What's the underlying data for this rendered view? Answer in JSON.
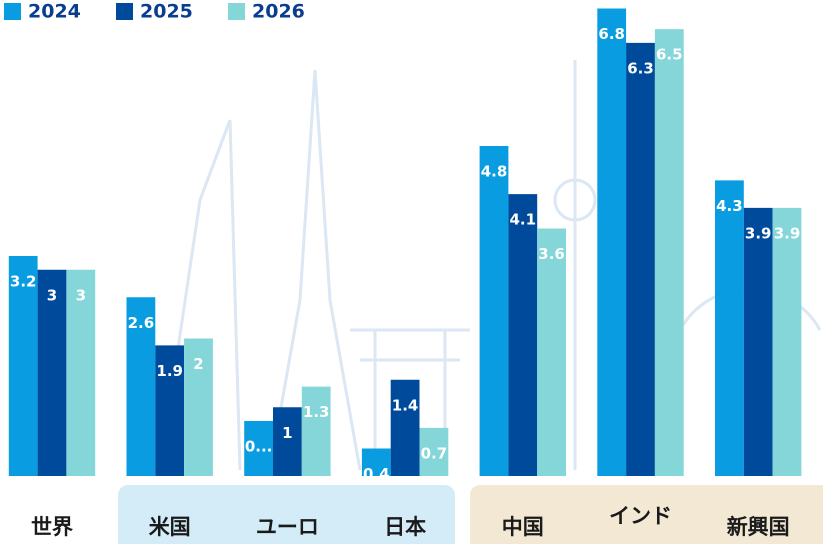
{
  "chart_data": {
    "type": "bar",
    "categories": [
      "世界",
      "米国",
      "ユーロ",
      "日本",
      "中国",
      "インド",
      "新興国"
    ],
    "series": [
      {
        "name": "2024",
        "color": "#0a9ce0",
        "values": [
          3.2,
          2.6,
          0.8,
          0.4,
          4.8,
          6.8,
          4.3
        ],
        "value_labels": [
          "3.2",
          "2.6",
          "0...",
          "0.4",
          "4.8",
          "6.8",
          "4.3"
        ]
      },
      {
        "name": "2025",
        "color": "#004a9b",
        "values": [
          3.0,
          1.9,
          1.0,
          1.4,
          4.1,
          6.3,
          3.9
        ]
      },
      {
        "name": "2026",
        "color": "#84d6d8",
        "values": [
          3.0,
          2.0,
          1.3,
          0.7,
          3.6,
          6.5,
          3.9
        ]
      }
    ],
    "ylim": [
      0,
      7
    ]
  }
}
